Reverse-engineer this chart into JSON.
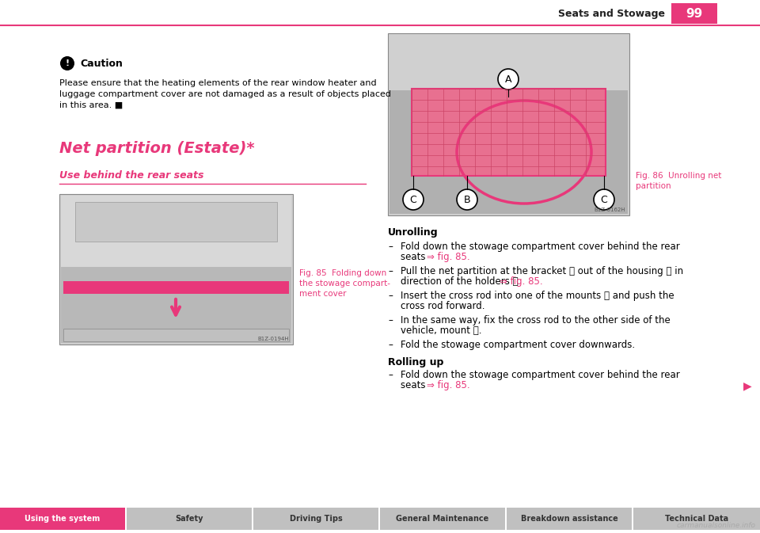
{
  "page_title": "Seats and Stowage",
  "page_number": "99",
  "bg_color": "#ffffff",
  "pink": "#e8387a",
  "dark_gray": "#444444",
  "tab_bg": "#c0c0c0",
  "section_title": "Net partition (Estate)*",
  "subsection_title": "Use behind the rear seats",
  "caution_title": "Caution",
  "caution_text1": "Please ensure that the heating elements of the rear window heater and",
  "caution_text2": "luggage compartment cover are not damaged as a result of objects placed",
  "caution_text3": "in this area. ■",
  "fig85_cap1": "Fig. 85  Folding down",
  "fig85_cap2": "the stowage compart-",
  "fig85_cap3": "ment cover",
  "fig86_cap1": "Fig. 86  Unrolling net",
  "fig86_cap2": "partition",
  "unrolling_title": "Unrolling",
  "rolling_up_title": "Rolling up",
  "b1": "Fold down the stowage compartment cover behind the rear",
  "b1b": "seats ⇒ fig. 85.",
  "b2": "Pull the net partition at the bracket Ⓐ out of the housing Ⓑ in",
  "b2b": "direction of the holders Ⓒ ⇒ fig. 85.",
  "b3": "Insert the cross rod into one of the mounts Ⓒ and push the",
  "b3b": "cross rod forward.",
  "b4": "In the same way, fix the cross rod to the other side of the",
  "b4b": "vehicle, mount Ⓒ.",
  "b5": "Fold the stowage compartment cover downwards.",
  "r1": "Fold down the stowage compartment cover behind the rear",
  "r1b": "seats ⇒ fig. 85.",
  "tabs": [
    "Using the system",
    "Safety",
    "Driving Tips",
    "General Maintenance",
    "Breakdown assistance",
    "Technical Data"
  ],
  "active_tab": 0,
  "watermark": "carmanualsonline.info"
}
